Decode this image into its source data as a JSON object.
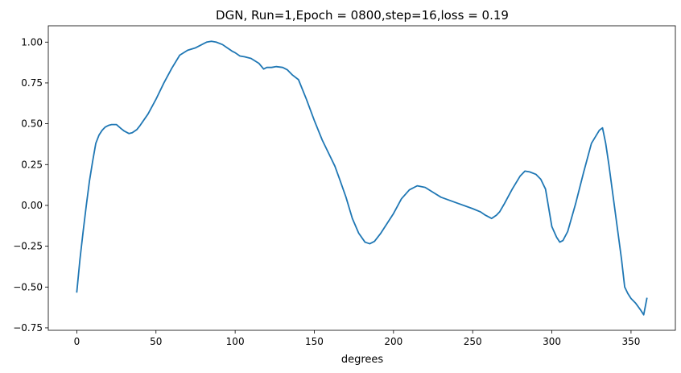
{
  "chart_data": {
    "type": "line",
    "title": "DGN, Run=1,Epoch = 0800,step=16,loss = 0.19",
    "xlabel": "degrees",
    "ylabel": "",
    "xlim": [
      -18,
      378
    ],
    "ylim": [
      -0.765,
      1.1
    ],
    "xticks": [
      0,
      50,
      100,
      150,
      200,
      250,
      300,
      350
    ],
    "yticks": [
      -0.75,
      -0.5,
      -0.25,
      0.0,
      0.25,
      0.5,
      0.75,
      1.0
    ],
    "xtick_labels": [
      "0",
      "50",
      "100",
      "150",
      "200",
      "250",
      "300",
      "350"
    ],
    "ytick_labels": [
      "−0.75",
      "−0.50",
      "−0.25",
      "0.00",
      "0.25",
      "0.50",
      "0.75",
      "1.00"
    ],
    "grid": false,
    "legend": "none",
    "series": [
      {
        "color": "#1f77b4",
        "x": [
          0,
          2,
          4,
          6,
          8,
          10,
          12,
          14,
          16,
          18,
          20,
          22,
          25,
          28,
          30,
          33,
          35,
          38,
          40,
          45,
          50,
          55,
          60,
          65,
          70,
          75,
          78,
          82,
          85,
          88,
          92,
          95,
          98,
          100,
          103,
          106,
          110,
          115,
          118,
          120,
          123,
          126,
          130,
          133,
          136,
          140,
          145,
          150,
          155,
          160,
          163,
          166,
          170,
          174,
          178,
          182,
          185,
          188,
          192,
          196,
          200,
          205,
          210,
          215,
          220,
          225,
          230,
          240,
          250,
          255,
          258,
          262,
          265,
          267,
          270,
          275,
          280,
          283,
          286,
          290,
          293,
          296,
          300,
          303,
          305,
          307,
          310,
          315,
          320,
          325,
          330,
          332,
          334,
          336,
          340,
          344,
          346,
          348,
          350,
          353,
          356,
          358,
          360
        ],
        "y": [
          -0.53,
          -0.33,
          -0.16,
          0.0,
          0.15,
          0.27,
          0.38,
          0.43,
          0.46,
          0.48,
          0.49,
          0.495,
          0.495,
          0.47,
          0.455,
          0.44,
          0.445,
          0.465,
          0.49,
          0.56,
          0.65,
          0.75,
          0.84,
          0.92,
          0.95,
          0.965,
          0.98,
          1.0,
          1.005,
          1.0,
          0.985,
          0.965,
          0.945,
          0.935,
          0.915,
          0.91,
          0.9,
          0.87,
          0.835,
          0.845,
          0.845,
          0.85,
          0.845,
          0.83,
          0.8,
          0.77,
          0.65,
          0.52,
          0.4,
          0.3,
          0.24,
          0.16,
          0.05,
          -0.08,
          -0.17,
          -0.225,
          -0.235,
          -0.22,
          -0.17,
          -0.11,
          -0.05,
          0.04,
          0.095,
          0.12,
          0.11,
          0.08,
          0.05,
          0.015,
          -0.02,
          -0.04,
          -0.06,
          -0.08,
          -0.06,
          -0.04,
          0.01,
          0.1,
          0.18,
          0.21,
          0.205,
          0.19,
          0.16,
          0.1,
          -0.13,
          -0.195,
          -0.225,
          -0.215,
          -0.16,
          0.01,
          0.2,
          0.38,
          0.46,
          0.475,
          0.38,
          0.25,
          -0.04,
          -0.33,
          -0.5,
          -0.54,
          -0.57,
          -0.6,
          -0.64,
          -0.67,
          -0.57
        ]
      }
    ]
  }
}
